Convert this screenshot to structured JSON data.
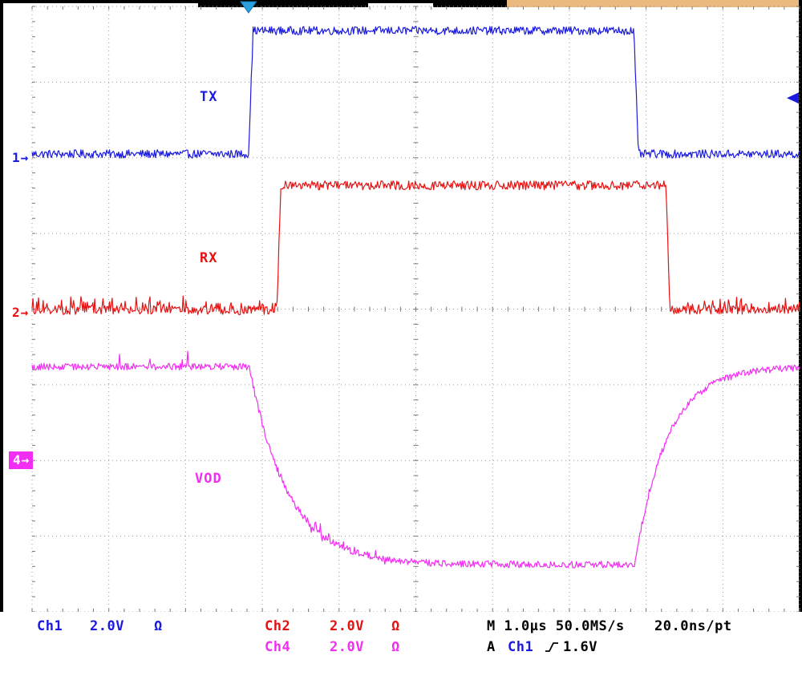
{
  "scope": {
    "trace_labels": {
      "tx": "TX",
      "rx": "RX",
      "vod": "VOD"
    },
    "markers": {
      "ch1": {
        "label": "1",
        "arrow": "→"
      },
      "ch2": {
        "label": "2",
        "arrow": "→"
      },
      "ch4": {
        "label": "4",
        "arrow": "→"
      }
    },
    "status": {
      "ch1": {
        "name": "Ch1",
        "scale": "2.0V",
        "coupling": "Ω"
      },
      "ch2": {
        "name": "Ch2",
        "scale": "2.0V",
        "coupling": "Ω"
      },
      "ch4": {
        "name": "Ch4",
        "scale": "2.0V",
        "coupling": "Ω"
      },
      "timebase": "M 1.0µs 50.0MS/s",
      "sample_res": "20.0ns/pt",
      "trigger_mode": "A",
      "trigger_source": "Ch1",
      "trigger_level": "1.6V"
    },
    "colors": {
      "ch1": "#1b1be0",
      "ch2": "#e81111",
      "ch4": "#f22ef2",
      "trigger": "#2b9fe0",
      "grid": "#9a9a9a",
      "accent_strip": "#eab97e"
    }
  },
  "chart_data": {
    "type": "line",
    "x_range": [
      0,
      10
    ],
    "x_unit": "µs",
    "divisions": {
      "x": 10,
      "y": 8
    },
    "volts_per_div": 2.0,
    "time_per_div_us": 1.0,
    "sample_rate": "50.0MS/s",
    "resolution": "20.0ns/pt",
    "grid": "dotted",
    "trigger": {
      "t_us": 2.82,
      "level_v": 1.6,
      "source": "Ch1",
      "slope": "rising"
    },
    "series": [
      {
        "name": "TX",
        "channel": "Ch1",
        "color": "#1b1be0",
        "zero_div": 2.01,
        "noise_v": 0.11,
        "segments": [
          {
            "t": 0,
            "v": 0.12
          },
          {
            "t": 2.82,
            "v": 3.38,
            "edge": "ramp",
            "dur": 0.06
          },
          {
            "t": 7.84,
            "v": 0.12,
            "edge": "ramp",
            "dur": 0.06
          }
        ]
      },
      {
        "name": "RX",
        "channel": "Ch2",
        "color": "#e81111",
        "zero_div": 4.04,
        "noise_v": 0.12,
        "segments": [
          {
            "t": 0,
            "v": 0.05
          },
          {
            "t": 3.19,
            "v": 3.35,
            "edge": "ramp",
            "dur": 0.05
          },
          {
            "t": 8.26,
            "v": 0.05,
            "edge": "ramp",
            "dur": 0.05
          }
        ],
        "spikes": [
          {
            "range": [
              0,
              3.17
            ],
            "p": 0.3,
            "amp": 0.28
          },
          {
            "range": [
              8.29,
              10
            ],
            "p": 0.3,
            "amp": 0.28
          }
        ]
      },
      {
        "name": "VOD",
        "channel": "Ch4",
        "color": "#f22ef2",
        "zero_div": 6.0,
        "noise_v": 0.09,
        "segments": [
          {
            "t": 0,
            "v": 2.48
          },
          {
            "t": 2.83,
            "v": -2.75,
            "edge": "exp",
            "tau": 0.5
          },
          {
            "t": 7.85,
            "v": 2.48,
            "edge": "exp",
            "tau": 0.42
          }
        ],
        "spikes": [
          {
            "range": [
              0.35,
              2.05
            ],
            "p": 0.05,
            "amp": 0.55
          },
          {
            "range": [
              3.5,
              4.6
            ],
            "p": 0.3,
            "amp": 0.2,
            "bipolar": true
          }
        ]
      }
    ]
  }
}
